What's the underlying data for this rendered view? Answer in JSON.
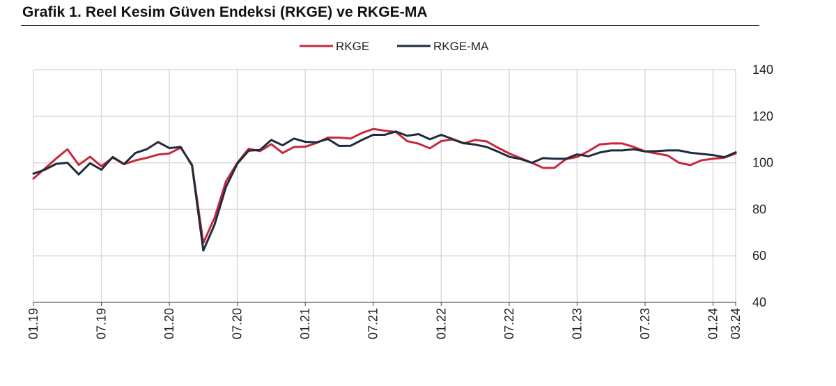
{
  "chart_data": {
    "type": "line",
    "title": "Grafik 1. Reel Kesim Güven Endeksi (RKGE) ve RKGE-MA",
    "xlabel": "",
    "ylabel": "",
    "ylim": [
      40,
      140
    ],
    "yticks": [
      40,
      60,
      80,
      100,
      120,
      140
    ],
    "y_axis_side": "right",
    "grid": true,
    "legend_position": "top-center",
    "x_tick_labels": [
      "01.19",
      "07.19",
      "01.20",
      "07.20",
      "01.21",
      "07.21",
      "01.22",
      "07.22",
      "01.23",
      "07.23",
      "01.24",
      "03.24"
    ],
    "x": [
      "01.19",
      "02.19",
      "03.19",
      "04.19",
      "05.19",
      "06.19",
      "07.19",
      "08.19",
      "09.19",
      "10.19",
      "11.19",
      "12.19",
      "01.20",
      "02.20",
      "03.20",
      "04.20",
      "05.20",
      "06.20",
      "07.20",
      "08.20",
      "09.20",
      "10.20",
      "11.20",
      "12.20",
      "01.21",
      "02.21",
      "03.21",
      "04.21",
      "05.21",
      "06.21",
      "07.21",
      "08.21",
      "09.21",
      "10.21",
      "11.21",
      "12.21",
      "01.22",
      "02.22",
      "03.22",
      "04.22",
      "05.22",
      "06.22",
      "07.22",
      "08.22",
      "09.22",
      "10.22",
      "11.22",
      "12.22",
      "01.23",
      "02.23",
      "03.23",
      "04.23",
      "05.23",
      "06.23",
      "07.23",
      "08.23",
      "09.23",
      "10.23",
      "11.23",
      "12.23",
      "01.24",
      "02.24",
      "03.24"
    ],
    "series": [
      {
        "name": "RKGE",
        "color": "#c8283c",
        "values": [
          93.2,
          97.5,
          101.8,
          105.8,
          99.1,
          102.6,
          98.5,
          102.2,
          99.4,
          101.0,
          102.1,
          103.5,
          104.0,
          106.5,
          99.2,
          65.5,
          76.5,
          92.0,
          100.0,
          106.0,
          105.0,
          108.0,
          104.2,
          106.8,
          106.9,
          108.5,
          110.8,
          110.8,
          110.4,
          112.8,
          114.5,
          113.8,
          113.2,
          109.3,
          108.2,
          106.2,
          109.3,
          110.0,
          108.3,
          109.8,
          109.2,
          106.5,
          104.0,
          102.0,
          100.0,
          97.8,
          97.8,
          101.5,
          102.5,
          105.0,
          107.9,
          108.3,
          108.3,
          106.8,
          104.9,
          104.0,
          103.1,
          100.0,
          99.0,
          101.1,
          101.7,
          102.2,
          104.0
        ]
      },
      {
        "name": "RKGE-MA",
        "color": "#1e2b3c",
        "values": [
          95.3,
          97.0,
          99.5,
          100.0,
          95.0,
          99.8,
          97.0,
          102.5,
          99.4,
          104.2,
          105.8,
          108.9,
          106.3,
          106.8,
          98.8,
          62.3,
          73.5,
          89.6,
          99.6,
          105.2,
          105.5,
          109.8,
          107.5,
          110.4,
          109.0,
          108.8,
          110.2,
          107.2,
          107.3,
          109.8,
          112.0,
          112.0,
          113.4,
          111.6,
          112.3,
          110.1,
          112.0,
          110.2,
          108.4,
          107.8,
          106.8,
          104.8,
          102.6,
          101.6,
          100.0,
          102.0,
          101.7,
          101.7,
          103.6,
          102.8,
          104.4,
          105.3,
          105.3,
          105.8,
          104.9,
          105.0,
          105.3,
          105.3,
          104.3,
          103.8,
          103.3,
          102.4,
          104.5
        ]
      }
    ]
  }
}
